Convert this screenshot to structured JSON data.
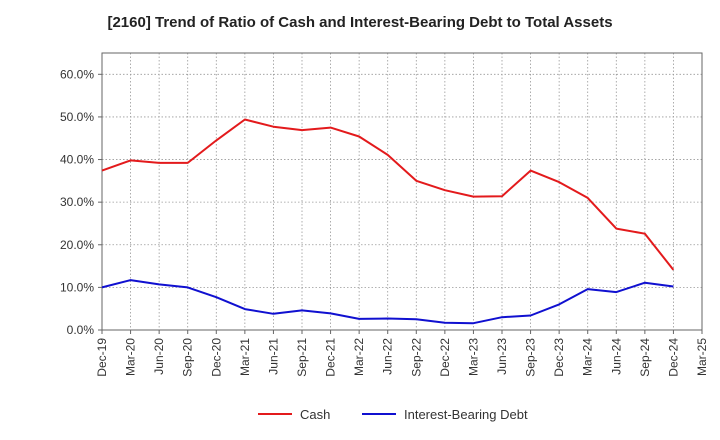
{
  "chart_data": {
    "type": "line",
    "title": "[2160]  Trend of Ratio of Cash and Interest-Bearing Debt to Total Assets",
    "xlabel": "",
    "ylabel": "",
    "x": [
      "Dec-19",
      "Mar-20",
      "Jun-20",
      "Sep-20",
      "Dec-20",
      "Mar-21",
      "Jun-21",
      "Sep-21",
      "Dec-21",
      "Mar-22",
      "Jun-22",
      "Sep-22",
      "Dec-22",
      "Mar-23",
      "Jun-23",
      "Sep-23",
      "Dec-23",
      "Mar-24",
      "Jun-24",
      "Sep-24",
      "Dec-24",
      "Mar-25"
    ],
    "y_ticks": [
      "0.0%",
      "10.0%",
      "20.0%",
      "30.0%",
      "40.0%",
      "50.0%",
      "60.0%"
    ],
    "ylim": [
      0,
      65
    ],
    "grid": true,
    "legend_position": "bottom",
    "series": [
      {
        "name": "Cash",
        "color": "#e31a1c",
        "values": [
          37.4,
          39.8,
          39.2,
          39.2,
          44.5,
          49.4,
          47.7,
          46.9,
          47.5,
          45.4,
          41.1,
          35.0,
          32.8,
          31.3,
          31.4,
          37.4,
          34.7,
          31.0,
          23.8,
          22.6,
          14.1,
          null
        ]
      },
      {
        "name": "Interest-Bearing Debt",
        "color": "#1010d0",
        "values": [
          10.0,
          11.7,
          10.7,
          10.0,
          7.7,
          4.9,
          3.8,
          4.6,
          3.9,
          2.6,
          2.7,
          2.5,
          1.7,
          1.6,
          3.0,
          3.4,
          6.0,
          9.6,
          8.9,
          11.1,
          10.2,
          null
        ]
      }
    ]
  }
}
